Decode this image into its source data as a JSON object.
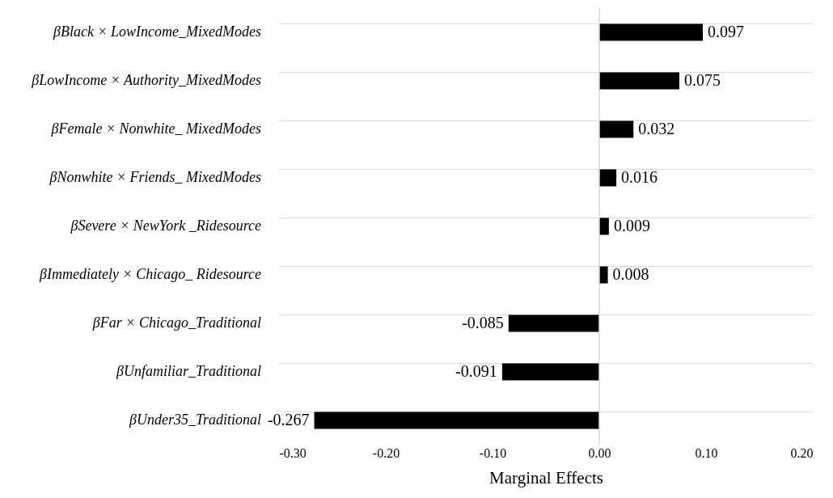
{
  "chart_data": {
    "type": "bar",
    "orientation": "horizontal",
    "xlabel": "Marginal Effects",
    "categories": [
      "βBlack × LowIncome_MixedModes",
      "βLowIncome × Authority_MixedModes",
      "βFemale × Nonwhite_ MixedModes",
      "βNonwhite × Friends_ MixedModes",
      "βSevere × NewYork _Ridesource",
      "βImmediately × Chicago_ Ridesource",
      "βFar × Chicago_Traditional",
      "βUnfamiliar_Traditional",
      "βUnder35_Traditional"
    ],
    "values": [
      0.097,
      0.075,
      0.032,
      0.016,
      0.009,
      0.008,
      -0.085,
      -0.091,
      -0.267
    ],
    "color": "#000000",
    "data_labels": true,
    "xlim": [
      -0.3,
      0.2
    ],
    "xticks": [
      {
        "value": -0.3,
        "label": "-0.30"
      },
      {
        "value": -0.2,
        "label": "-0.20"
      },
      {
        "value": -0.1,
        "label": "-0.10"
      },
      {
        "value": 0.0,
        "label": "0.00"
      },
      {
        "value": 0.1,
        "label": "0.10"
      },
      {
        "value": 0.2,
        "label": "0.20"
      }
    ],
    "ref_lines": [
      {
        "axis": "x",
        "value": 0,
        "color": "#d9d9d9"
      }
    ],
    "grid": "y",
    "legend": false
  }
}
